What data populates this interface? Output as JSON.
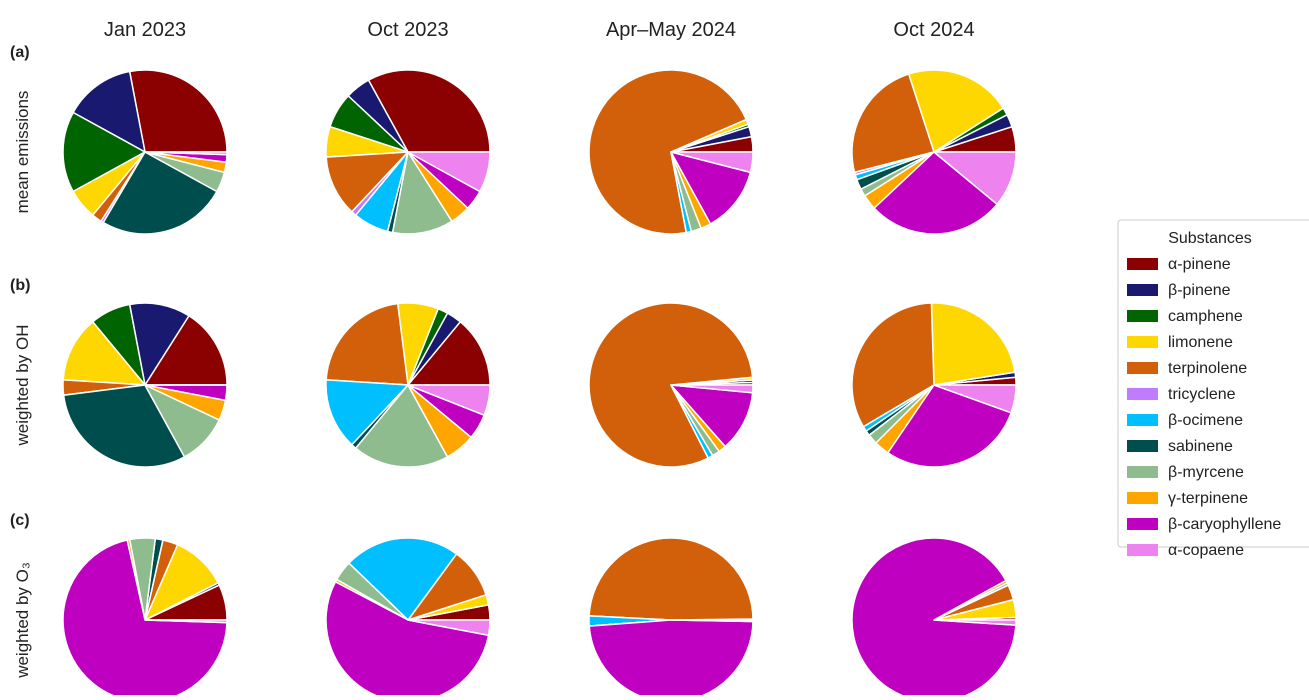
{
  "chart_data": {
    "type": "pie",
    "legend_title": "Substances",
    "legend_position": "right",
    "categories": [
      "α-pinene",
      "β-pinene",
      "camphene",
      "limonene",
      "terpinolene",
      "tricyclene",
      "β-ocimene",
      "sabinene",
      "β-myrcene",
      "γ-terpinene",
      "β-caryophyllene",
      "α-copaene"
    ],
    "colors": [
      "#8b0000",
      "#191970",
      "#006400",
      "#ffd700",
      "#d2600a",
      "#c07cff",
      "#00bfff",
      "#004d4d",
      "#8fbc8f",
      "#ffa500",
      "#c000c0",
      "#ee82ee"
    ],
    "column_titles": [
      "Jan 2023",
      "Oct 2023",
      "Apr–May 2024",
      "Oct 2024"
    ],
    "rows": [
      {
        "label": "(a)",
        "ylabel": "mean emissions",
        "values": [
          [
            28,
            14,
            16,
            6,
            2,
            0.5,
            0,
            25.5,
            4,
            2,
            1.5,
            0.5
          ],
          [
            33,
            5,
            7,
            6,
            12,
            1,
            7,
            1,
            12,
            4,
            4,
            8
          ],
          [
            3,
            2,
            0.5,
            1,
            71.5,
            0,
            1,
            0,
            2,
            2,
            13,
            4
          ],
          [
            5,
            2.5,
            1.5,
            21,
            24,
            0.5,
            1,
            2,
            1.5,
            3,
            27,
            11
          ]
        ]
      },
      {
        "label": "(b)",
        "ylabel": "weighted by OH",
        "values": [
          [
            16,
            12,
            8,
            13,
            3,
            0,
            0,
            31,
            10,
            4,
            3,
            0
          ],
          [
            14,
            3,
            2,
            8,
            22,
            0,
            14,
            1,
            19,
            6,
            5,
            6
          ],
          [
            0.5,
            0.5,
            0,
            0.5,
            81,
            0,
            1,
            0,
            1.5,
            1.5,
            12,
            1.5
          ],
          [
            1.5,
            1,
            0,
            23,
            33,
            0,
            1,
            1,
            2,
            3,
            29,
            5.5
          ]
        ]
      },
      {
        "label": "(c)",
        "ylabel": "weighted by O₃",
        "values": [
          [
            7,
            0.5,
            0,
            11,
            3,
            0,
            0,
            1.5,
            5,
            0.5,
            71,
            0.5
          ],
          [
            3,
            0,
            0,
            2,
            10,
            0,
            23,
            0,
            4,
            0.5,
            55,
            3
          ],
          [
            0.2,
            0,
            0,
            0,
            49,
            0,
            2,
            0,
            0,
            0,
            48.5,
            0.3
          ],
          [
            0.5,
            0,
            0,
            3.5,
            3,
            0,
            0,
            0,
            0.5,
            0.5,
            91,
            1
          ]
        ]
      }
    ]
  }
}
